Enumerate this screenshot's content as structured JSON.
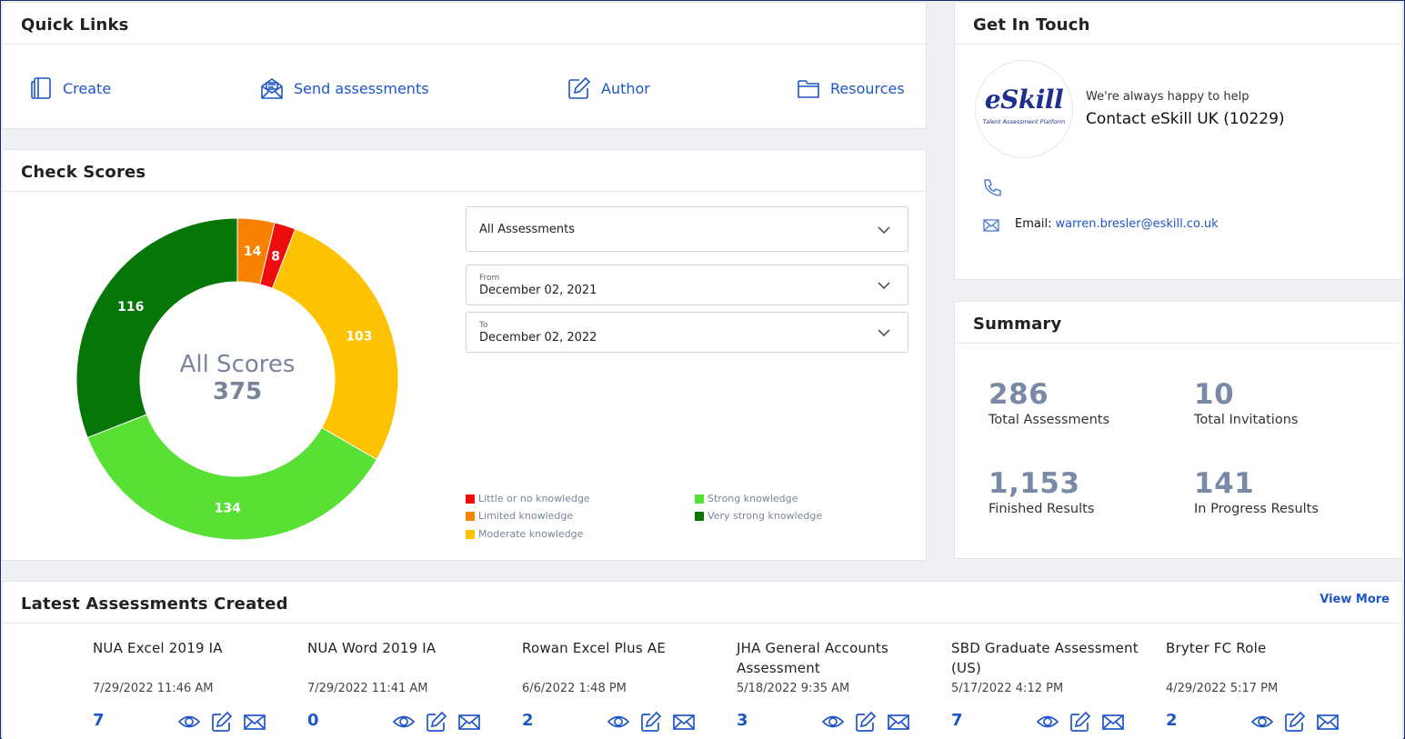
{
  "quick_links": {
    "title": "Quick Links",
    "items": [
      {
        "label": "Create",
        "icon": "notebook-icon"
      },
      {
        "label": "Send assessments",
        "icon": "envelope-open-icon"
      },
      {
        "label": "Author",
        "icon": "pencil-square-icon"
      },
      {
        "label": "Resources",
        "icon": "folder-icon"
      }
    ]
  },
  "check_scores": {
    "title": "Check Scores",
    "assessment_select": "All Assessments",
    "from_label": "From",
    "from_value": "December 02, 2021",
    "to_label": "To",
    "to_value": "December 02, 2022"
  },
  "chart_data": {
    "type": "pie",
    "donut": true,
    "center_title": "All Scores",
    "center_value": "375",
    "segments": [
      {
        "name": "Limited knowledge",
        "value": 14,
        "color": "#f98100"
      },
      {
        "name": "Little or no knowledge",
        "value": 8,
        "color": "#ee0d0d"
      },
      {
        "name": "Moderate knowledge",
        "value": 103,
        "color": "#fdc200"
      },
      {
        "name": "Strong knowledge",
        "value": 134,
        "color": "#58e034"
      },
      {
        "name": "Very strong knowledge",
        "value": 116,
        "color": "#067609"
      }
    ],
    "legend": [
      {
        "name": "Little or no knowledge",
        "color": "#ee0d0d"
      },
      {
        "name": "Limited knowledge",
        "color": "#f98100"
      },
      {
        "name": "Moderate knowledge",
        "color": "#fdc200"
      },
      {
        "name": "Strong knowledge",
        "color": "#58e034"
      },
      {
        "name": "Very strong knowledge",
        "color": "#067609"
      }
    ],
    "legend_position": "bottom-right"
  },
  "get_in_touch": {
    "title": "Get In Touch",
    "logo_word": "eSkill",
    "logo_tagline": "Talent Assessment Platform",
    "subtitle": "We're always happy to help",
    "contact_name": "Contact eSkill UK (10229)",
    "email_label": "Email:",
    "email": "warren.bresler@eskill.co.uk"
  },
  "summary": {
    "title": "Summary",
    "stats": [
      {
        "value": "286",
        "label": "Total Assessments"
      },
      {
        "value": "10",
        "label": "Total Invitations"
      },
      {
        "value": "1,153",
        "label": "Finished Results"
      },
      {
        "value": "141",
        "label": "In Progress Results"
      }
    ]
  },
  "latest": {
    "title": "Latest Assessments Created",
    "view_more": "View More",
    "items": [
      {
        "name": "NUA Excel 2019 IA",
        "date": "7/29/2022 11:46 AM",
        "count": "7"
      },
      {
        "name": "NUA Word 2019 IA",
        "date": "7/29/2022 11:41 AM",
        "count": "0"
      },
      {
        "name": "Rowan Excel Plus AE",
        "date": "6/6/2022 1:48 PM",
        "count": "2"
      },
      {
        "name": "JHA General Accounts Assessment",
        "date": "5/18/2022 9:35 AM",
        "count": "3"
      },
      {
        "name": "SBD Graduate Assessment (US)",
        "date": "5/17/2022 4:12 PM",
        "count": "7"
      },
      {
        "name": "Bryter FC Role",
        "date": "4/29/2022 5:17 PM",
        "count": "2"
      }
    ]
  },
  "colors": {
    "accent": "#1f56c6",
    "stat_number": "#7a8aa6"
  }
}
